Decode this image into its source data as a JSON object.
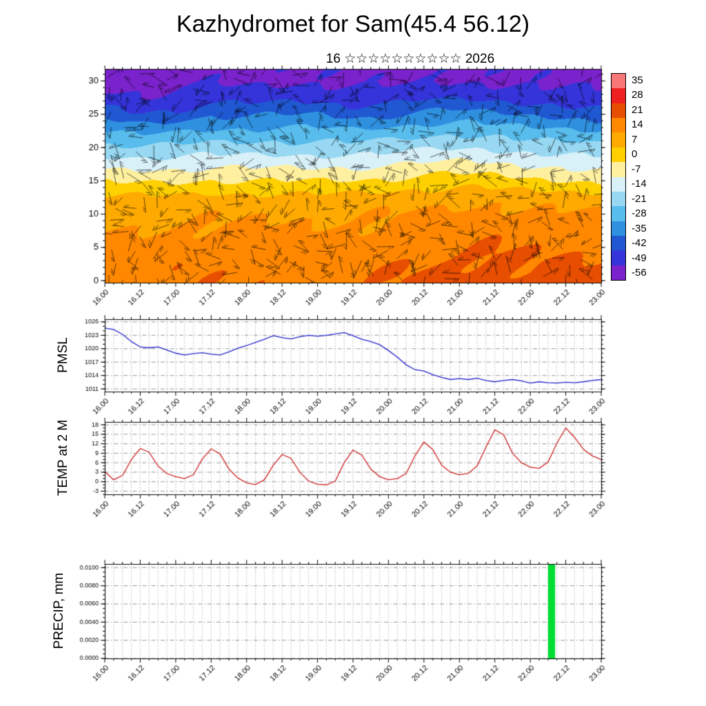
{
  "title": "Kazhydromet for Sam(45.4 56.12)",
  "subtitle": "16 ☆☆☆☆☆☆☆☆☆☆ 2026",
  "x_axis": {
    "labels": [
      "16.00",
      "16.12",
      "17.00",
      "17.12",
      "18.00",
      "18.12",
      "19.00",
      "19.12",
      "20.00",
      "20.12",
      "21.00",
      "21.12",
      "22.00",
      "22.12",
      "23.00"
    ],
    "values": [
      16,
      16.5,
      17,
      17.5,
      18,
      18.5,
      19,
      19.5,
      20,
      20.5,
      21,
      21.5,
      22,
      22.5,
      23
    ],
    "min": 16,
    "max": 23,
    "minor_step": 0.125,
    "series_x": [
      16,
      16.125,
      16.25,
      16.375,
      16.5,
      16.625,
      16.75,
      16.875,
      17,
      17.125,
      17.25,
      17.375,
      17.5,
      17.625,
      17.75,
      17.875,
      18,
      18.125,
      18.25,
      18.375,
      18.5,
      18.625,
      18.75,
      18.875,
      19,
      19.125,
      19.25,
      19.375,
      19.5,
      19.625,
      19.75,
      19.875,
      20,
      20.125,
      20.25,
      20.375,
      20.5,
      20.625,
      20.75,
      20.875,
      21,
      21.125,
      21.25,
      21.375,
      21.5,
      21.625,
      21.75,
      21.875,
      22,
      22.125,
      22.25,
      22.375,
      22.5,
      22.625,
      22.75,
      22.875,
      23
    ]
  },
  "chart_data": [
    {
      "type": "heatmap",
      "name": "model-level-temperature-with-wind-barbs",
      "ylabel": "",
      "yticks": [
        0,
        5,
        10,
        15,
        20,
        25,
        30
      ],
      "ylim": [
        -0.3,
        31.8
      ],
      "overlay": "wind-barbs",
      "grid_heights": [
        0,
        2.5,
        5,
        7.5,
        10,
        12.5,
        15,
        17.5,
        20,
        22.5,
        25,
        27.5,
        30
      ],
      "grid_times": [
        16,
        16.5,
        17,
        17.5,
        18,
        18.5,
        19,
        19.5,
        20,
        20.5,
        21,
        21.5,
        22,
        22.5,
        23
      ],
      "values": [
        [
          12,
          12,
          13,
          13,
          12,
          13,
          13,
          13,
          14,
          15,
          16,
          17,
          15,
          16,
          15
        ],
        [
          11,
          11,
          12,
          12,
          12,
          12,
          12,
          12,
          13,
          14,
          15,
          16,
          14,
          15,
          14
        ],
        [
          9,
          9,
          10,
          10,
          10,
          10,
          10,
          10,
          11,
          12,
          13,
          14,
          13,
          13,
          12
        ],
        [
          7,
          7,
          8,
          8,
          8,
          8,
          8,
          8,
          9,
          10,
          11,
          12,
          11,
          11,
          10
        ],
        [
          5,
          5,
          5,
          6,
          6,
          6,
          6,
          6,
          7,
          8,
          9,
          9,
          8,
          8,
          7
        ],
        [
          1,
          1,
          1,
          2,
          2,
          2,
          2,
          2,
          3,
          4,
          5,
          5,
          4,
          3,
          3
        ],
        [
          -8,
          -8,
          -8,
          -7,
          -7,
          -7,
          -7,
          -7,
          -6,
          -4,
          -3,
          -4,
          -6,
          -7,
          -8
        ],
        [
          -17,
          -17,
          -17,
          -16,
          -16,
          -16,
          -16,
          -16,
          -15,
          -13,
          -12,
          -13,
          -15,
          -16,
          -17
        ],
        [
          -26,
          -27,
          -26,
          -25,
          -25,
          -25,
          -25,
          -25,
          -24,
          -22,
          -21,
          -22,
          -24,
          -25,
          -26
        ],
        [
          -35,
          -37,
          -36,
          -34,
          -34,
          -33,
          -33,
          -34,
          -33,
          -31,
          -30,
          -31,
          -33,
          -34,
          -35
        ],
        [
          -45,
          -49,
          -47,
          -43,
          -43,
          -42,
          -42,
          -45,
          -43,
          -40,
          -39,
          -41,
          -43,
          -44,
          -46
        ],
        [
          -53,
          -55,
          -54,
          -52,
          -52,
          -51,
          -51,
          -53,
          -52,
          -50,
          -50,
          -51,
          -52,
          -53,
          -54
        ],
        [
          -58,
          -59,
          -58,
          -57,
          -57,
          -56.5,
          -57,
          -58,
          -57.5,
          -56.5,
          -56,
          -57,
          -57.5,
          -58,
          -58
        ]
      ],
      "colorbar": {
        "labels": [
          35,
          28,
          21,
          14,
          7,
          0,
          -7,
          -14,
          -21,
          -28,
          -35,
          -42,
          -49,
          -56
        ],
        "boundaries": [
          35,
          28,
          21,
          14,
          7,
          0,
          -7,
          -14,
          -21,
          -28,
          -35,
          -42,
          -49,
          -56
        ],
        "colors": [
          "#ffc0c0",
          "#f87878",
          "#ee2020",
          "#e84e00",
          "#ff8800",
          "#ffaa00",
          "#ffd000",
          "#fff0a0",
          "#d8f0f8",
          "#98d8f2",
          "#58bcec",
          "#2f90e0",
          "#2058d2",
          "#3434da",
          "#7a22cc"
        ]
      }
    },
    {
      "type": "line",
      "name": "PMSL",
      "ylabel": "PMSL",
      "color": "#2222cc",
      "yticks": [
        1011,
        1014,
        1017,
        1020,
        1023,
        1026
      ],
      "ylim": [
        1010.4,
        1026.6
      ],
      "values": [
        1024.6,
        1024.3,
        1023.2,
        1021.6,
        1020.4,
        1020.2,
        1020.4,
        1019.7,
        1019.0,
        1018.6,
        1018.9,
        1019.1,
        1018.8,
        1018.6,
        1019.3,
        1020.1,
        1020.7,
        1021.4,
        1022.1,
        1022.9,
        1022.5,
        1022.2,
        1022.7,
        1023.0,
        1022.8,
        1023.0,
        1023.3,
        1023.6,
        1022.9,
        1022.1,
        1021.6,
        1020.9,
        1019.6,
        1018.1,
        1016.4,
        1015.3,
        1015.0,
        1014.2,
        1013.6,
        1013.1,
        1013.3,
        1013.1,
        1013.4,
        1012.9,
        1012.6,
        1012.9,
        1013.1,
        1012.8,
        1012.3,
        1012.6,
        1012.4,
        1012.3,
        1012.5,
        1012.4,
        1012.6,
        1012.9,
        1013.1
      ]
    },
    {
      "type": "line",
      "name": "TEMP at 2 M",
      "ylabel": "TEMP at 2 M",
      "color": "#cc2020",
      "yticks": [
        -3,
        0,
        3,
        6,
        9,
        12,
        15,
        18
      ],
      "ylim": [
        -4,
        18.9
      ],
      "values": [
        3.2,
        0.6,
        2.0,
        7.0,
        10.5,
        9.3,
        5.0,
        2.6,
        1.6,
        1.0,
        2.2,
        7.2,
        10.4,
        8.8,
        4.0,
        1.2,
        -0.4,
        -0.9,
        0.6,
        5.2,
        8.6,
        7.4,
        3.0,
        0.2,
        -0.8,
        -1.0,
        0.2,
        6.0,
        10.0,
        8.4,
        4.0,
        1.6,
        0.6,
        1.0,
        2.6,
        8.2,
        12.6,
        10.2,
        5.2,
        3.0,
        2.2,
        2.6,
        5.0,
        11.0,
        16.4,
        14.8,
        9.0,
        6.0,
        4.6,
        4.2,
        6.2,
        12.2,
        17.0,
        14.0,
        10.2,
        8.2,
        7.0
      ]
    },
    {
      "type": "bar",
      "name": "PRECIP, mm",
      "ylabel": "PRECIP, mm",
      "color": "#00dd33",
      "yticks": [
        0,
        0.002,
        0.004,
        0.006,
        0.008,
        0.01
      ],
      "ytick_labels": [
        "0.0000",
        "0.0020",
        "0.0040",
        "0.0060",
        "0.0080",
        "0.0100"
      ],
      "ylim": [
        0,
        0.0104
      ],
      "bars": [
        {
          "x": 22.3,
          "width": 0.1,
          "value": 0.0104
        }
      ]
    }
  ]
}
